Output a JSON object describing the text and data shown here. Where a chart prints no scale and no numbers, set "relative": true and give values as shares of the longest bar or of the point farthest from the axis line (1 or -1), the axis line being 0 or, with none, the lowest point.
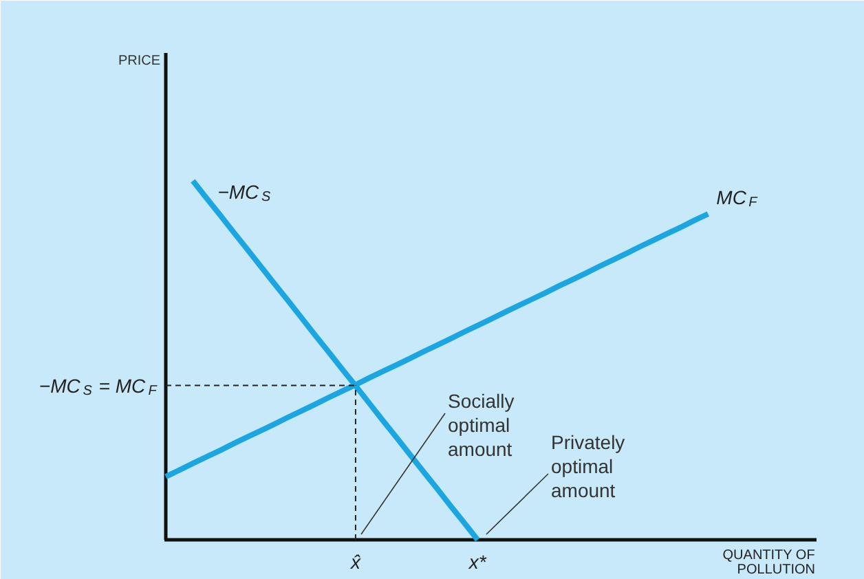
{
  "chart_data": {
    "type": "line",
    "relative": true,
    "xlabel": "QUANTITY OF\nPOLLUTION",
    "categories": [
      null,
      null,
      null,
      null,
      null,
      null,
      null,
      null,
      null,
      null,
      null,
      null,
      null,
      null,
      "x̂",
      null,
      null,
      null,
      null,
      null,
      null,
      null,
      null,
      "x*",
      null,
      null,
      null,
      null,
      null,
      null,
      null,
      null,
      null,
      null,
      null,
      null,
      null,
      null,
      null,
      null,
      null,
      null,
      null,
      null,
      null,
      null,
      null,
      null,
      null
    ],
    "series": [
      {
        "name": "−MC$_{S}$",
        "color": "#1ba6e1",
        "values": [
          null,
          null,
          1,
          0.952,
          0.905,
          0.857,
          0.81,
          0.762,
          0.714,
          0.667,
          0.619,
          0.571,
          0.524,
          0.476,
          0.429,
          0.381,
          0.333,
          0.286,
          0.238,
          0.19,
          0.143,
          0.095,
          0.048,
          0,
          null,
          null,
          null,
          null,
          null,
          null,
          null,
          null,
          null,
          null,
          null,
          null,
          null,
          null,
          null,
          null,
          null,
          null,
          null,
          null,
          null,
          null,
          null,
          null,
          null
        ]
      },
      {
        "name": "MC$_{F}$",
        "color": "#1ba6e1",
        "values": [
          0.176,
          0.194,
          0.213,
          0.231,
          0.249,
          0.268,
          0.286,
          0.304,
          0.322,
          0.341,
          0.359,
          0.377,
          0.396,
          0.414,
          0.432,
          0.451,
          0.469,
          0.487,
          0.505,
          0.524,
          0.542,
          0.56,
          0.579,
          0.597,
          0.615,
          0.634,
          0.652,
          0.67,
          0.688,
          0.707,
          0.725,
          0.743,
          0.762,
          0.78,
          0.798,
          0.817,
          0.835,
          0.853,
          0.871,
          0.89,
          0.908,
          null,
          null,
          null,
          null,
          null,
          null,
          null,
          null
        ]
      }
    ],
    "ref_lines": [
      {
        "axis": "y",
        "value": 0.43,
        "label": "−MC$_{S}$ = MC$_{F}$",
        "line_style": "dashed",
        "color": "#222222"
      },
      {
        "axis": "x",
        "value": "x̂",
        "line_style": "dashed",
        "color": "#222222"
      }
    ],
    "annotations": [
      "PRICE",
      "Socially\noptimal\namount",
      "Privately\noptimal\namount"
    ],
    "grid": false,
    "legend": false
  }
}
